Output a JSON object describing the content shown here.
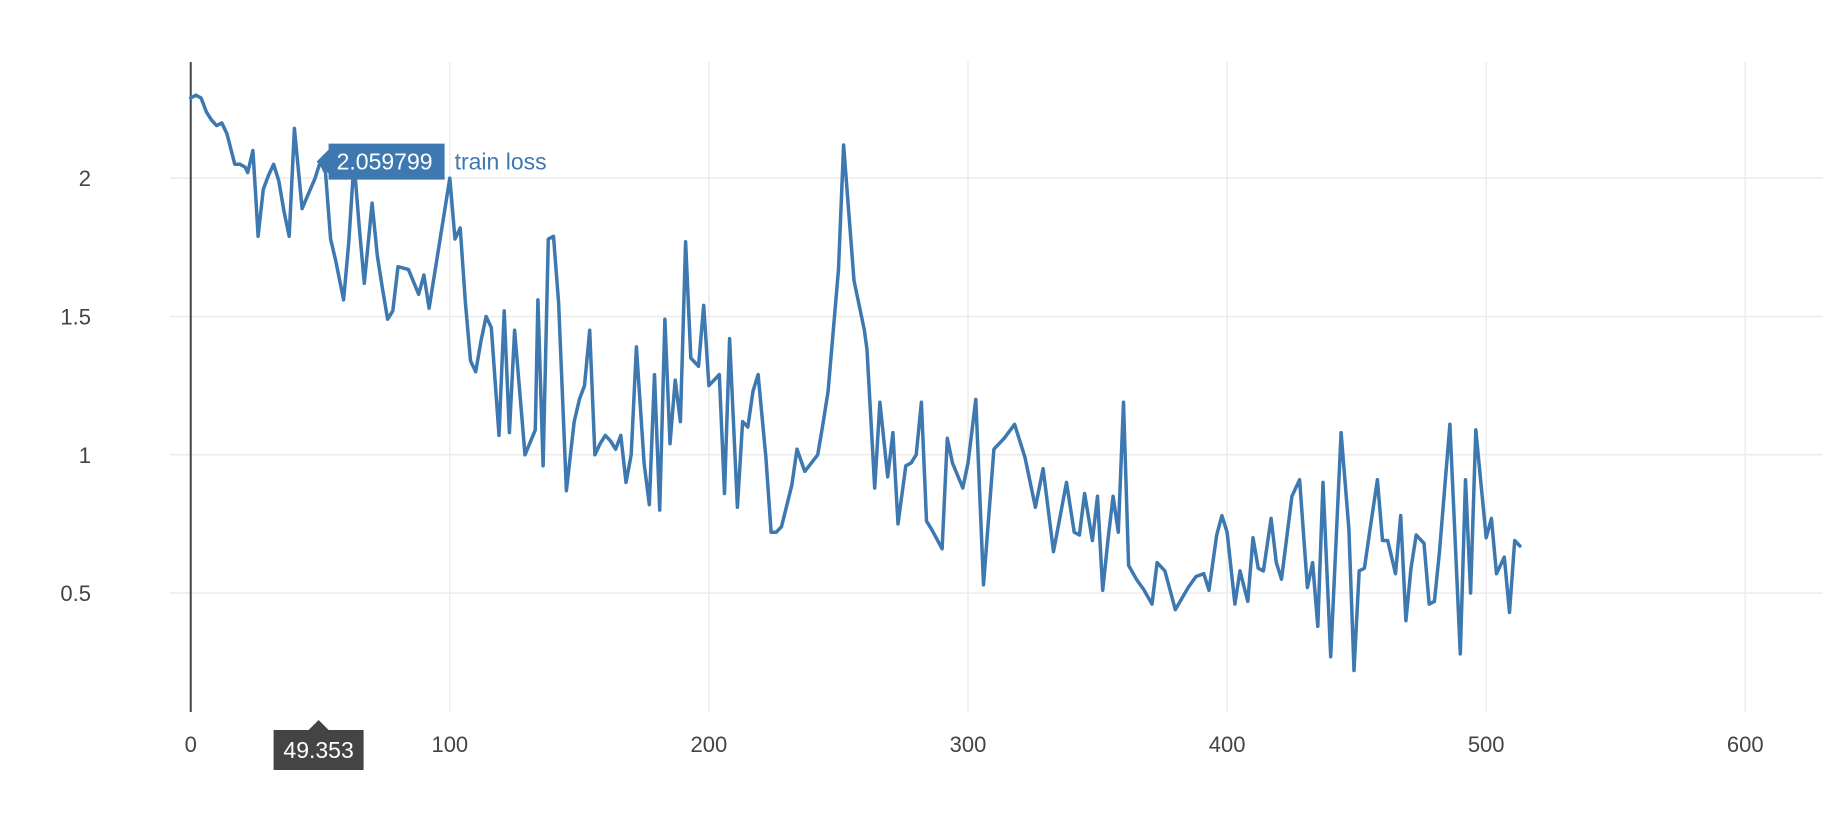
{
  "chart_data": {
    "type": "line",
    "title": "",
    "xlabel": "",
    "ylabel": "",
    "xlim": [
      -8,
      630
    ],
    "ylim": [
      0.07,
      2.42
    ],
    "grid": true,
    "legend": "none",
    "xticks": [
      0,
      100,
      200,
      300,
      400,
      500,
      600
    ],
    "xtick_labels": [
      "0",
      "100",
      "200",
      "300",
      "400",
      "500",
      "600"
    ],
    "yticks": [
      0.5,
      1,
      1.5,
      2
    ],
    "ytick_labels": [
      "0.5",
      "1",
      "1.5",
      "2"
    ],
    "series": [
      {
        "name": "train loss",
        "color": "#3d78b0",
        "points": [
          [
            0,
            2.29
          ],
          [
            2,
            2.3
          ],
          [
            4,
            2.29
          ],
          [
            6,
            2.24
          ],
          [
            8,
            2.21
          ],
          [
            10,
            2.19
          ],
          [
            12,
            2.2
          ],
          [
            14,
            2.16
          ],
          [
            17,
            2.05
          ],
          [
            19,
            2.05
          ],
          [
            21,
            2.04
          ],
          [
            22,
            2.02
          ],
          [
            24,
            2.1
          ],
          [
            25,
            1.95
          ],
          [
            26,
            1.79
          ],
          [
            28,
            1.96
          ],
          [
            30,
            2.01
          ],
          [
            32,
            2.05
          ],
          [
            34,
            1.99
          ],
          [
            36,
            1.88
          ],
          [
            38,
            1.79
          ],
          [
            40,
            2.18
          ],
          [
            43,
            1.89
          ],
          [
            48,
            2.0
          ],
          [
            50,
            2.06
          ],
          [
            52,
            2.02
          ],
          [
            54,
            1.78
          ],
          [
            56,
            1.7
          ],
          [
            59,
            1.56
          ],
          [
            61,
            1.77
          ],
          [
            63,
            2.06
          ],
          [
            65,
            1.83
          ],
          [
            67,
            1.62
          ],
          [
            70,
            1.91
          ],
          [
            72,
            1.72
          ],
          [
            74,
            1.6
          ],
          [
            76,
            1.49
          ],
          [
            78,
            1.52
          ],
          [
            80,
            1.68
          ],
          [
            84,
            1.67
          ],
          [
            88,
            1.58
          ],
          [
            90,
            1.65
          ],
          [
            92,
            1.53
          ],
          [
            100,
            2.0
          ],
          [
            102,
            1.78
          ],
          [
            104,
            1.82
          ],
          [
            106,
            1.55
          ],
          [
            108,
            1.34
          ],
          [
            110,
            1.3
          ],
          [
            112,
            1.41
          ],
          [
            114,
            1.5
          ],
          [
            116,
            1.46
          ],
          [
            119,
            1.07
          ],
          [
            121,
            1.52
          ],
          [
            123,
            1.08
          ],
          [
            125,
            1.45
          ],
          [
            129,
            1.0
          ],
          [
            133,
            1.09
          ],
          [
            134,
            1.56
          ],
          [
            136,
            0.96
          ],
          [
            138,
            1.78
          ],
          [
            140,
            1.79
          ],
          [
            142,
            1.55
          ],
          [
            145,
            0.87
          ],
          [
            148,
            1.12
          ],
          [
            150,
            1.2
          ],
          [
            152,
            1.25
          ],
          [
            154,
            1.45
          ],
          [
            156,
            1.0
          ],
          [
            158,
            1.04
          ],
          [
            160,
            1.07
          ],
          [
            162,
            1.05
          ],
          [
            164,
            1.02
          ],
          [
            166,
            1.07
          ],
          [
            168,
            0.9
          ],
          [
            170,
            1.0
          ],
          [
            172,
            1.39
          ],
          [
            175,
            0.97
          ],
          [
            177,
            0.82
          ],
          [
            179,
            1.29
          ],
          [
            181,
            0.8
          ],
          [
            183,
            1.49
          ],
          [
            185,
            1.04
          ],
          [
            187,
            1.27
          ],
          [
            189,
            1.12
          ],
          [
            191,
            1.77
          ],
          [
            193,
            1.35
          ],
          [
            196,
            1.32
          ],
          [
            198,
            1.54
          ],
          [
            200,
            1.25
          ],
          [
            204,
            1.29
          ],
          [
            206,
            0.86
          ],
          [
            208,
            1.42
          ],
          [
            211,
            0.81
          ],
          [
            213,
            1.12
          ],
          [
            215,
            1.1
          ],
          [
            217,
            1.23
          ],
          [
            219,
            1.29
          ],
          [
            222,
            0.99
          ],
          [
            224,
            0.72
          ],
          [
            226,
            0.72
          ],
          [
            228,
            0.74
          ],
          [
            232,
            0.89
          ],
          [
            234,
            1.02
          ],
          [
            237,
            0.94
          ],
          [
            242,
            1.0
          ],
          [
            244,
            1.11
          ],
          [
            246,
            1.23
          ],
          [
            250,
            1.67
          ],
          [
            252,
            2.12
          ],
          [
            256,
            1.63
          ],
          [
            260,
            1.45
          ],
          [
            261,
            1.38
          ],
          [
            264,
            0.88
          ],
          [
            266,
            1.19
          ],
          [
            269,
            0.92
          ],
          [
            271,
            1.08
          ],
          [
            273,
            0.75
          ],
          [
            276,
            0.96
          ],
          [
            278,
            0.97
          ],
          [
            280,
            1.0
          ],
          [
            282,
            1.19
          ],
          [
            284,
            0.76
          ],
          [
            286,
            0.73
          ],
          [
            290,
            0.66
          ],
          [
            292,
            1.06
          ],
          [
            294,
            0.97
          ],
          [
            298,
            0.88
          ],
          [
            300,
            0.97
          ],
          [
            303,
            1.2
          ],
          [
            306,
            0.53
          ],
          [
            310,
            1.02
          ],
          [
            314,
            1.06
          ],
          [
            318,
            1.11
          ],
          [
            322,
            0.99
          ],
          [
            326,
            0.81
          ],
          [
            329,
            0.95
          ],
          [
            333,
            0.65
          ],
          [
            335,
            0.75
          ],
          [
            338,
            0.9
          ],
          [
            341,
            0.72
          ],
          [
            343,
            0.71
          ],
          [
            345,
            0.86
          ],
          [
            348,
            0.69
          ],
          [
            350,
            0.85
          ],
          [
            352,
            0.51
          ],
          [
            354,
            0.69
          ],
          [
            356,
            0.85
          ],
          [
            358,
            0.72
          ],
          [
            360,
            1.19
          ],
          [
            362,
            0.6
          ],
          [
            365,
            0.55
          ],
          [
            368,
            0.51
          ],
          [
            371,
            0.46
          ],
          [
            373,
            0.61
          ],
          [
            376,
            0.58
          ],
          [
            380,
            0.44
          ],
          [
            385,
            0.52
          ],
          [
            388,
            0.56
          ],
          [
            391,
            0.57
          ],
          [
            393,
            0.51
          ],
          [
            396,
            0.71
          ],
          [
            398,
            0.78
          ],
          [
            400,
            0.72
          ],
          [
            403,
            0.46
          ],
          [
            405,
            0.58
          ],
          [
            408,
            0.47
          ],
          [
            410,
            0.7
          ],
          [
            412,
            0.59
          ],
          [
            414,
            0.58
          ],
          [
            417,
            0.77
          ],
          [
            419,
            0.61
          ],
          [
            421,
            0.55
          ],
          [
            425,
            0.85
          ],
          [
            428,
            0.91
          ],
          [
            431,
            0.52
          ],
          [
            433,
            0.61
          ],
          [
            435,
            0.38
          ],
          [
            437,
            0.9
          ],
          [
            440,
            0.27
          ],
          [
            444,
            1.08
          ],
          [
            447,
            0.73
          ],
          [
            449,
            0.22
          ],
          [
            451,
            0.58
          ],
          [
            453,
            0.59
          ],
          [
            455,
            0.72
          ],
          [
            458,
            0.91
          ],
          [
            460,
            0.69
          ],
          [
            462,
            0.69
          ],
          [
            465,
            0.57
          ],
          [
            467,
            0.78
          ],
          [
            469,
            0.4
          ],
          [
            471,
            0.59
          ],
          [
            473,
            0.71
          ],
          [
            476,
            0.68
          ],
          [
            478,
            0.46
          ],
          [
            480,
            0.47
          ],
          [
            482,
            0.65
          ],
          [
            486,
            1.11
          ],
          [
            490,
            0.28
          ],
          [
            492,
            0.91
          ],
          [
            494,
            0.5
          ],
          [
            496,
            1.09
          ],
          [
            500,
            0.7
          ],
          [
            502,
            0.77
          ],
          [
            504,
            0.57
          ],
          [
            507,
            0.63
          ],
          [
            509,
            0.43
          ],
          [
            511,
            0.69
          ],
          [
            513,
            0.67
          ]
        ]
      }
    ],
    "hover": {
      "x_value": "49.353",
      "y_value": "2.059799",
      "series_name": "train loss",
      "point": [
        49.353,
        2.06
      ]
    }
  }
}
